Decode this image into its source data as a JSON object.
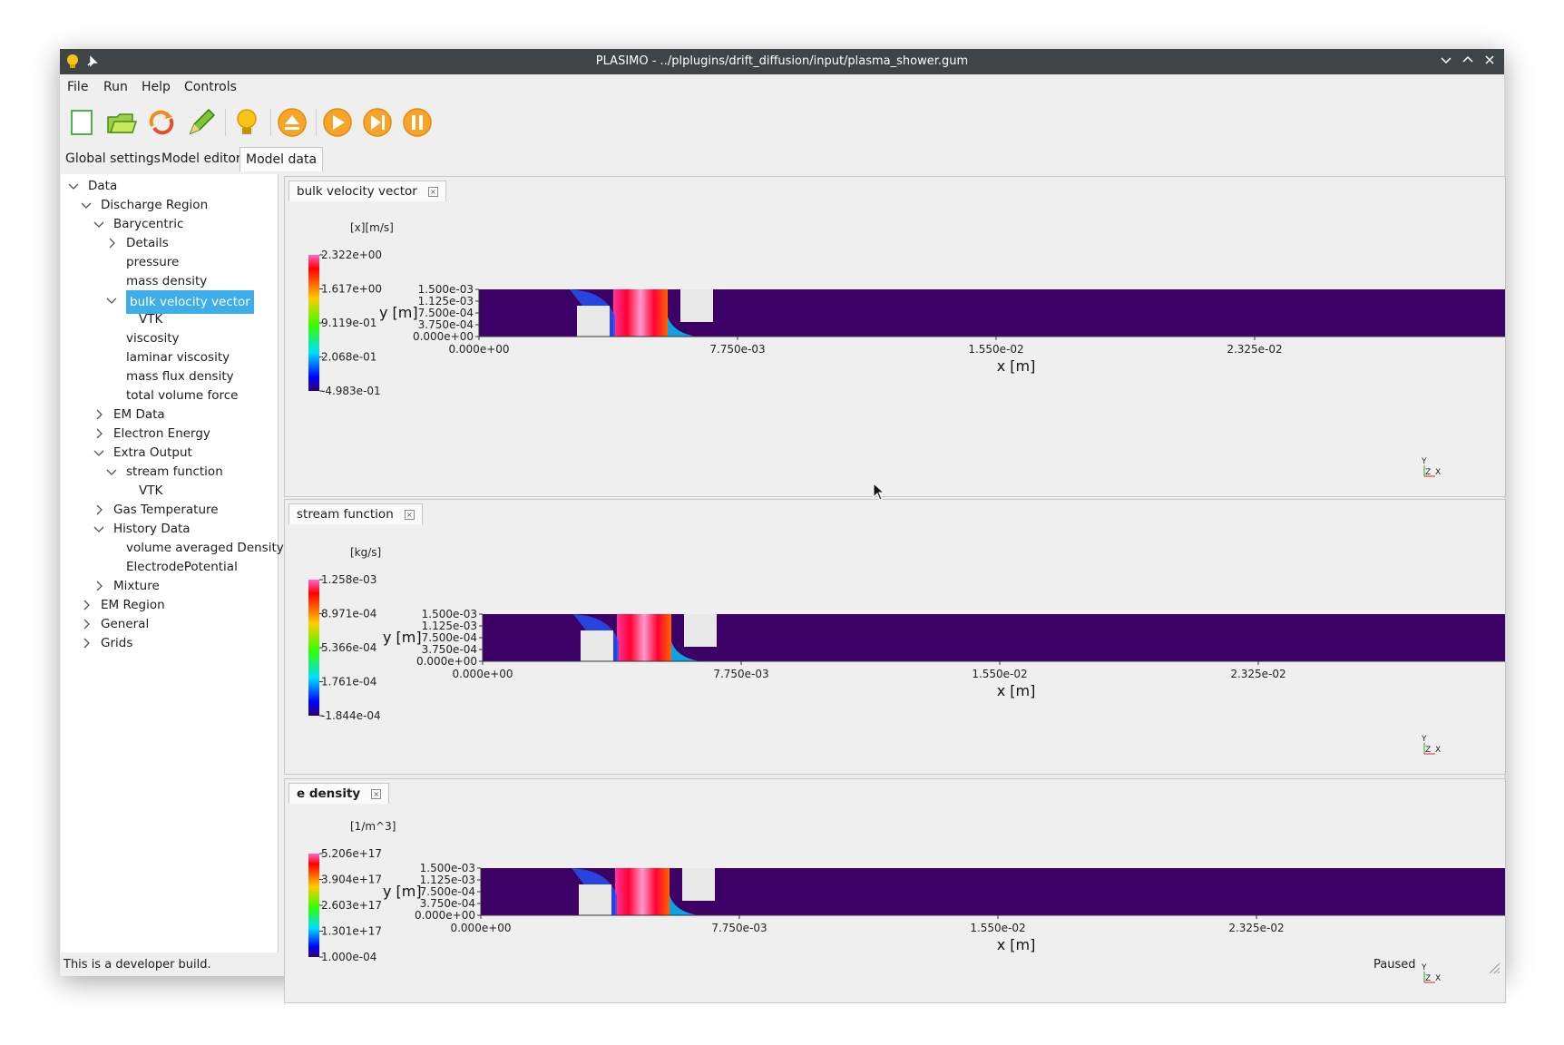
{
  "window": {
    "title": "PLASIMO - ../plplugins/drift_diffusion/input/plasma_shower.gum"
  },
  "menu": [
    "File",
    "Run",
    "Help",
    "Controls"
  ],
  "toolbar": {
    "tools": [
      "new-icon",
      "open-folder-icon",
      "reload-icon",
      "edit-icon",
      "lightbulb-icon",
      "eject-icon",
      "play-icon",
      "step-icon",
      "pause-icon"
    ]
  },
  "tabs": [
    {
      "label": "Global settings"
    },
    {
      "label": "Model editor"
    },
    {
      "label": "Model data"
    }
  ],
  "tree": [
    {
      "label": "Data",
      "level": 0,
      "state": "open"
    },
    {
      "label": "Discharge Region",
      "level": 1,
      "state": "open"
    },
    {
      "label": "Barycentric",
      "level": 2,
      "state": "open"
    },
    {
      "label": "Details",
      "level": 3,
      "state": "closed"
    },
    {
      "label": "pressure",
      "level": 3,
      "state": "leaf"
    },
    {
      "label": "mass density",
      "level": 3,
      "state": "leaf"
    },
    {
      "label": "bulk velocity vector",
      "level": 3,
      "state": "open",
      "selected": true
    },
    {
      "label": "VTK",
      "level": 4,
      "state": "leaf"
    },
    {
      "label": "viscosity",
      "level": 3,
      "state": "leaf"
    },
    {
      "label": "laminar viscosity",
      "level": 3,
      "state": "leaf"
    },
    {
      "label": "mass flux density",
      "level": 3,
      "state": "leaf"
    },
    {
      "label": "total volume force",
      "level": 3,
      "state": "leaf"
    },
    {
      "label": "EM Data",
      "level": 2,
      "state": "closed"
    },
    {
      "label": "Electron Energy",
      "level": 2,
      "state": "closed"
    },
    {
      "label": "Extra Output",
      "level": 2,
      "state": "open"
    },
    {
      "label": "stream function",
      "level": 3,
      "state": "open"
    },
    {
      "label": "VTK",
      "level": 4,
      "state": "leaf"
    },
    {
      "label": "Gas Temperature",
      "level": 2,
      "state": "closed"
    },
    {
      "label": "History Data",
      "level": 2,
      "state": "open"
    },
    {
      "label": "volume averaged Density",
      "level": 3,
      "state": "leaf"
    },
    {
      "label": "ElectrodePotential",
      "level": 3,
      "state": "leaf"
    },
    {
      "label": "Mixture",
      "level": 2,
      "state": "closed"
    },
    {
      "label": "EM Region",
      "level": 1,
      "state": "closed"
    },
    {
      "label": "General",
      "level": 1,
      "state": "closed"
    },
    {
      "label": "Grids",
      "level": 1,
      "state": "closed"
    }
  ],
  "panels": [
    {
      "tab": "bulk velocity vector",
      "bold": false,
      "unit": "[x][m/s]",
      "colorbar_labels": [
        "2.322e+00",
        "1.617e+00",
        "9.119e-01",
        "2.068e-01",
        "-4.983e-01"
      ],
      "ylabel": "y [m]",
      "xlabel": "x [m]",
      "yticks": [
        "1.500e-03",
        "1.125e-03",
        "7.500e-04",
        "3.750e-04",
        "0.000e+00"
      ],
      "xticks": [
        "0.000e+00",
        "7.750e-03",
        "1.550e-02",
        "2.325e-02"
      ],
      "axes_triad": [
        "Y",
        "Z",
        "X"
      ]
    },
    {
      "tab": "stream function",
      "bold": false,
      "unit": "[kg/s]",
      "colorbar_labels": [
        "1.258e-03",
        "8.971e-04",
        "5.366e-04",
        "1.761e-04",
        "-1.844e-04"
      ],
      "ylabel": "y [m]",
      "xlabel": "x [m]",
      "yticks": [
        "1.500e-03",
        "1.125e-03",
        "7.500e-04",
        "3.750e-04",
        "0.000e+00"
      ],
      "xticks": [
        "0.000e+00",
        "7.750e-03",
        "1.550e-02",
        "2.325e-02"
      ],
      "axes_triad": [
        "Y",
        "Z",
        "X"
      ]
    },
    {
      "tab": "e density",
      "bold": true,
      "unit": "[1/m^3]",
      "colorbar_labels": [
        "5.206e+17",
        "3.904e+17",
        "2.603e+17",
        "1.301e+17",
        "1.000e-04"
      ],
      "ylabel": "y [m]",
      "xlabel": "x [m]",
      "yticks": [
        "1.500e-03",
        "1.125e-03",
        "7.500e-04",
        "3.750e-04",
        "0.000e+00"
      ],
      "xticks": [
        "0.000e+00",
        "7.750e-03",
        "1.550e-02",
        "2.325e-02"
      ],
      "axes_triad": [
        "Y",
        "Z",
        "X"
      ]
    }
  ],
  "status": {
    "left": "This is a developer build.",
    "right": "Paused"
  }
}
